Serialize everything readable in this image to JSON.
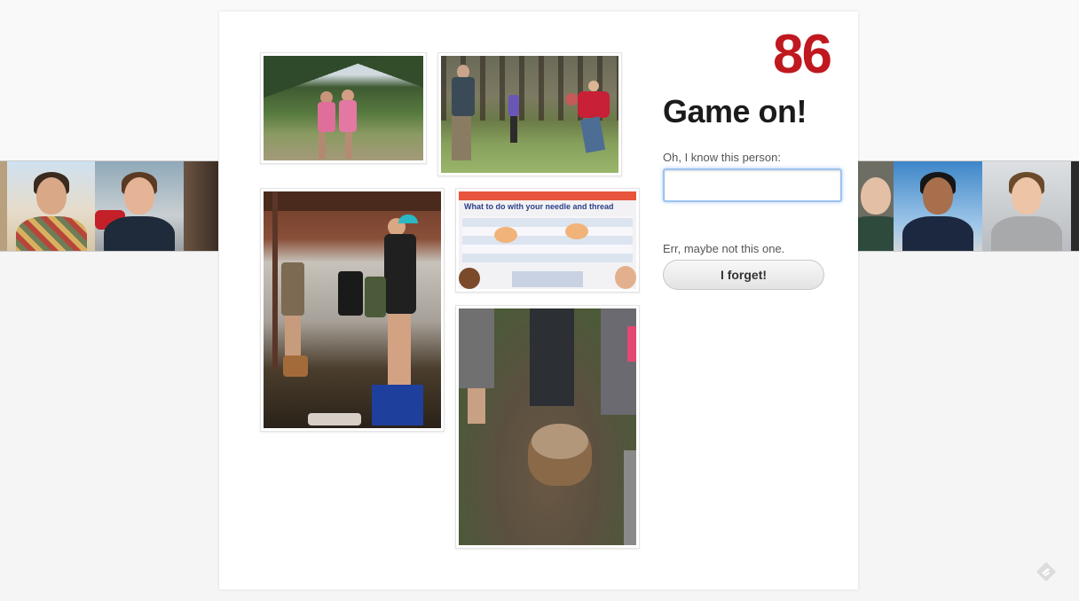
{
  "game": {
    "score": "86",
    "title": "Game on!",
    "know_label": "Oh, I know this person:",
    "name_input_value": "",
    "maybe_label": "Err, maybe not this one.",
    "forget_button_label": "I forget!"
  },
  "photos": {
    "photo_4_poster_heading": "What to do with your needle and thread"
  },
  "icons": {
    "bottom_corner": "feather-logo-icon"
  },
  "colors": {
    "score": "#c0181f",
    "input_focus": "#9dc3ee"
  }
}
